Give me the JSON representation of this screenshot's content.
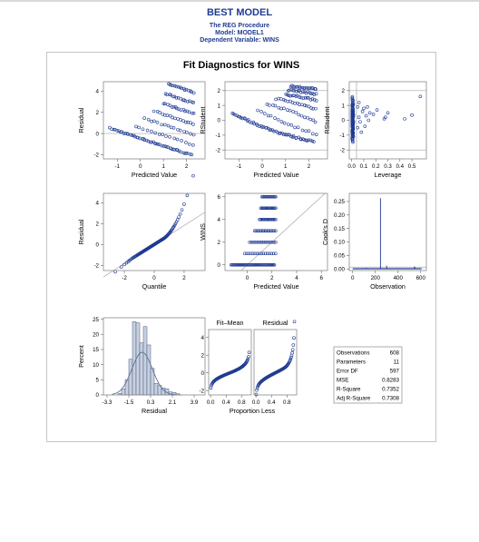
{
  "page": {
    "title": "BEST MODEL",
    "procedure": "The REG Procedure",
    "model": "Model: MODEL1",
    "dependent": "Dependent Variable: WINS"
  },
  "panel": {
    "title": "Fit Diagnostics for WINS"
  },
  "colors": {
    "accent": "#1f3a93",
    "marker": "#1f3a93",
    "ref": "#a6a6a6",
    "bar_fill": "#c8d1e1",
    "curve": "#5b6f96"
  },
  "chart_data": [
    {
      "id": "residual-vs-predicted",
      "type": "scatter",
      "xlabel": "Predicted Value",
      "ylabel": "Residual",
      "xlim": [
        -1.6,
        2.8
      ],
      "ylim": [
        -2.4,
        4.9
      ],
      "xticks": [
        "-1",
        "0",
        "1",
        "2"
      ],
      "xtick_values": [
        -1,
        0,
        1,
        2
      ],
      "yticks": [
        "4",
        "2",
        "0",
        "-2"
      ],
      "ytick_values": [
        4,
        2,
        0,
        -2
      ],
      "ref_lines_y": [
        0
      ],
      "bands": [
        {
          "wins": 0,
          "x_from": -1.3,
          "x_to": 2.2
        },
        {
          "wins": 1,
          "x_from": -0.2,
          "x_to": 2.3
        },
        {
          "wins": 2,
          "x_from": 0.2,
          "x_to": 2.3
        },
        {
          "wins": 3,
          "x_from": 0.6,
          "x_to": 2.3
        },
        {
          "wins": 4,
          "x_from": 1.0,
          "x_to": 2.3
        },
        {
          "wins": 5,
          "x_from": 1.1,
          "x_to": 2.3
        },
        {
          "wins": 6,
          "x_from": 1.2,
          "x_to": 2.3
        }
      ]
    },
    {
      "id": "rstudent-vs-predicted",
      "type": "scatter",
      "xlabel": "Predicted Value",
      "ylabel": "RStudent",
      "xlim": [
        -1.6,
        2.8
      ],
      "ylim": [
        -2.6,
        2.6
      ],
      "xticks": [
        "-1",
        "0",
        "1",
        "2"
      ],
      "xtick_values": [
        -1,
        0,
        1,
        2
      ],
      "yticks": [
        "2",
        "1",
        "0",
        "-1",
        "-2"
      ],
      "ytick_values": [
        2,
        1,
        0,
        -1,
        -2
      ],
      "ref_lines_y": [
        -2,
        2
      ]
    },
    {
      "id": "rstudent-vs-leverage",
      "type": "scatter",
      "xlabel": "Leverage",
      "ylabel": "RStudent",
      "xlim": [
        -0.02,
        0.62
      ],
      "ylim": [
        -2.6,
        2.6
      ],
      "xticks": [
        "0.0",
        "0.1",
        "0.2",
        "0.3",
        "0.4",
        "0.5"
      ],
      "xtick_values": [
        0,
        0.1,
        0.2,
        0.3,
        0.4,
        0.5
      ],
      "yticks": [
        "2",
        "1",
        "0",
        "-1",
        "-2"
      ],
      "ytick_values": [
        2,
        1,
        0,
        -1,
        -2
      ],
      "ref_lines_y": [
        -2,
        2
      ],
      "ref_lines_x": [
        0.04
      ]
    },
    {
      "id": "qq-residual",
      "type": "scatter",
      "xlabel": "Quantile",
      "ylabel": "Residual",
      "xlim": [
        -3.4,
        3.4
      ],
      "ylim": [
        -2.5,
        4.9
      ],
      "xticks": [
        "-2",
        "0",
        "2"
      ],
      "xtick_values": [
        -2,
        0,
        2
      ],
      "yticks": [
        "4",
        "2",
        "0",
        "-2"
      ],
      "ytick_values": [
        4,
        2,
        0,
        -2
      ]
    },
    {
      "id": "wins-vs-predicted",
      "type": "scatter",
      "xlabel": "Predicted Value",
      "ylabel": "WINS",
      "xlim": [
        -1.8,
        6.5
      ],
      "ylim": [
        -0.5,
        6.3
      ],
      "xticks": [
        "0",
        "2",
        "4",
        "6"
      ],
      "xtick_values": [
        0,
        2,
        4,
        6
      ],
      "yticks": [
        "6",
        "4",
        "2",
        "0"
      ],
      "ytick_values": [
        6,
        4,
        2,
        0
      ],
      "rows": [
        {
          "wins": 0,
          "x_from": -1.3,
          "x_to": 2.2
        },
        {
          "wins": 1,
          "x_from": -0.2,
          "x_to": 2.3
        },
        {
          "wins": 2,
          "x_from": 0.2,
          "x_to": 2.3
        },
        {
          "wins": 3,
          "x_from": 0.6,
          "x_to": 2.3
        },
        {
          "wins": 4,
          "x_from": 1.0,
          "x_to": 2.3
        },
        {
          "wins": 5,
          "x_from": 1.1,
          "x_to": 2.3
        },
        {
          "wins": 6,
          "x_from": 1.2,
          "x_to": 2.3
        }
      ]
    },
    {
      "id": "cooks-d",
      "type": "bar",
      "xlabel": "Observation",
      "ylabel": "Cook's D",
      "xlim": [
        -30,
        650
      ],
      "ylim": [
        -0.006,
        0.28
      ],
      "xticks": [
        "0",
        "200",
        "400",
        "600"
      ],
      "xtick_values": [
        0,
        200,
        400,
        600
      ],
      "yticks": [
        "0.25",
        "0.20",
        "0.15",
        "0.10",
        "0.05",
        "0.00"
      ],
      "ytick_values": [
        0.25,
        0.2,
        0.15,
        0.1,
        0.05,
        0
      ],
      "ref_lines_y": [
        0.0066
      ],
      "spikes": [
        [
          245,
          0.262
        ],
        [
          300,
          0.012
        ],
        [
          545,
          0.009
        ],
        [
          548,
          0.006
        ],
        [
          120,
          0.004
        ],
        [
          400,
          0.003
        ],
        [
          470,
          0.003
        ]
      ]
    },
    {
      "id": "residual-histogram",
      "type": "bar",
      "xlabel": "Residual",
      "ylabel": "Percent",
      "xlim": [
        -3.6,
        4.8
      ],
      "ylim": [
        0,
        25.5
      ],
      "xticks": [
        "-3.3",
        "-1.5",
        "0.3",
        "2.1",
        "3.9"
      ],
      "xtick_values": [
        -3.3,
        -1.5,
        0.3,
        2.1,
        3.9
      ],
      "yticks": [
        "25",
        "20",
        "15",
        "10",
        "5",
        "0"
      ],
      "ytick_values": [
        25,
        20,
        15,
        10,
        5,
        0
      ],
      "bin_width": 0.3,
      "bins": [
        {
          "start": -2.4,
          "percent": 0.5
        },
        {
          "start": -2.1,
          "percent": 2.0
        },
        {
          "start": -1.8,
          "percent": 5.0
        },
        {
          "start": -1.5,
          "percent": 11.8
        },
        {
          "start": -1.2,
          "percent": 24.2
        },
        {
          "start": -0.9,
          "percent": 23.8
        },
        {
          "start": -0.6,
          "percent": 17.2
        },
        {
          "start": -0.3,
          "percent": 22.6
        },
        {
          "start": 0.0,
          "percent": 16.5
        },
        {
          "start": 0.3,
          "percent": 8.8
        },
        {
          "start": 0.6,
          "percent": 3.8
        },
        {
          "start": 0.9,
          "percent": 3.1
        },
        {
          "start": 1.2,
          "percent": 2.3
        },
        {
          "start": 1.5,
          "percent": 2.0
        },
        {
          "start": 1.8,
          "percent": 1.0
        },
        {
          "start": 2.1,
          "percent": 0.8
        },
        {
          "start": 2.4,
          "percent": 0.4
        }
      ],
      "normal_curve": {
        "mean": -0.4,
        "sd": 0.85
      }
    },
    {
      "id": "residual-fit-spread",
      "type": "scatter",
      "xlabel": "Proportion Less",
      "panels": [
        "Fit–Mean",
        "Residual"
      ],
      "xlim": [
        -0.05,
        1.05
      ],
      "ylim": [
        -2.5,
        4.9
      ],
      "xticks": [
        "0.0",
        "0.4",
        "0.8"
      ],
      "xtick_values": [
        0,
        0.4,
        0.8
      ],
      "yticks": [
        "4",
        "2",
        "0",
        "-2"
      ],
      "ytick_values": [
        4,
        2,
        0,
        -2
      ]
    },
    {
      "id": "fit-statistics",
      "type": "table",
      "rows": [
        [
          "Observations",
          "608"
        ],
        [
          "Parameters",
          "11"
        ],
        [
          "Error DF",
          "597"
        ],
        [
          "MSE",
          "0.8283"
        ],
        [
          "R-Square",
          "0.7352"
        ],
        [
          "Adj R-Square",
          "0.7308"
        ]
      ]
    }
  ]
}
